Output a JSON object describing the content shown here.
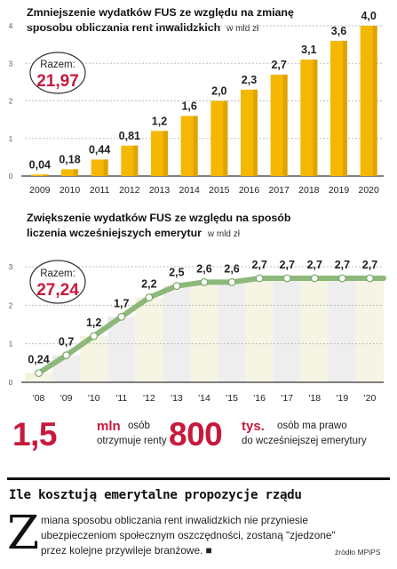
{
  "chart_data": [
    {
      "type": "bar",
      "title": "Zmniejszenie wydatków FUS ze względu na zmianę",
      "title2": "sposobu obliczania rent inwalidzkich",
      "unit": "w mld zł",
      "categories": [
        "2009",
        "2010",
        "2011",
        "2012",
        "2013",
        "2014",
        "2015",
        "2016",
        "2017",
        "2018",
        "2019",
        "2020"
      ],
      "values": [
        0.04,
        0.18,
        0.44,
        0.81,
        1.2,
        1.6,
        2.0,
        2.3,
        2.7,
        3.1,
        3.6,
        4.0
      ],
      "labels": [
        "0,04",
        "0,18",
        "0,44",
        "0,81",
        "1,2",
        "1,6",
        "2,0",
        "2,3",
        "2,7",
        "3,1",
        "3,6",
        "4,0"
      ],
      "yticks": [
        "0",
        "1",
        "2",
        "3",
        "4"
      ],
      "ylim": [
        0,
        4
      ],
      "total_label": "Razem:",
      "total_value": "21,97",
      "bar_color": "#f5b800"
    },
    {
      "type": "line",
      "title": "Zwiększenie wydatków FUS ze względu na sposób",
      "title2": "liczenia wcześniejszych emerytur",
      "unit": "w mld zł",
      "categories": [
        "'08",
        "'09",
        "'10",
        "'11",
        "'12",
        "'13",
        "'14",
        "'15",
        "'16",
        "'17",
        "'18",
        "'19",
        "'20"
      ],
      "values": [
        0.24,
        0.7,
        1.2,
        1.7,
        2.2,
        2.5,
        2.6,
        2.6,
        2.7,
        2.7,
        2.7,
        2.7,
        2.7
      ],
      "labels": [
        "0,24",
        "0,7",
        "1,2",
        "1,7",
        "2,2",
        "2,5",
        "2,6",
        "2,6",
        "2,7",
        "2,7",
        "2,7",
        "2,7",
        "2,7"
      ],
      "yticks": [
        "0",
        "1",
        "2",
        "3"
      ],
      "ylim": [
        0,
        3
      ],
      "total_label": "Razem:",
      "total_value": "27,24",
      "line_color": "#8cb87a"
    }
  ],
  "stats": [
    {
      "number": "1,5",
      "unit": "mln",
      "desc_line1": "osób",
      "desc_line2": "otrzymuje renty"
    },
    {
      "number": "800",
      "unit": "tys.",
      "desc_line1": "osób ma prawo",
      "desc_line2": "do wcześniejszej emerytury"
    }
  ],
  "article": {
    "headline": "Ile kosztują emerytalne propozycje rządu",
    "dropcap": "Z",
    "line1": "miana sposobu obliczania rent inwalidzkich nie przyniesie",
    "line2": "ubezpieczeniom społecznym oszczędności, zostaną \"zjedzone\"",
    "line3": "przez kolejne przywileje branżowe. ■",
    "source": "źródło MPiPS"
  },
  "colors": {
    "accent": "#c8193c",
    "bar": "#f5b800",
    "line": "#8cb87a"
  }
}
